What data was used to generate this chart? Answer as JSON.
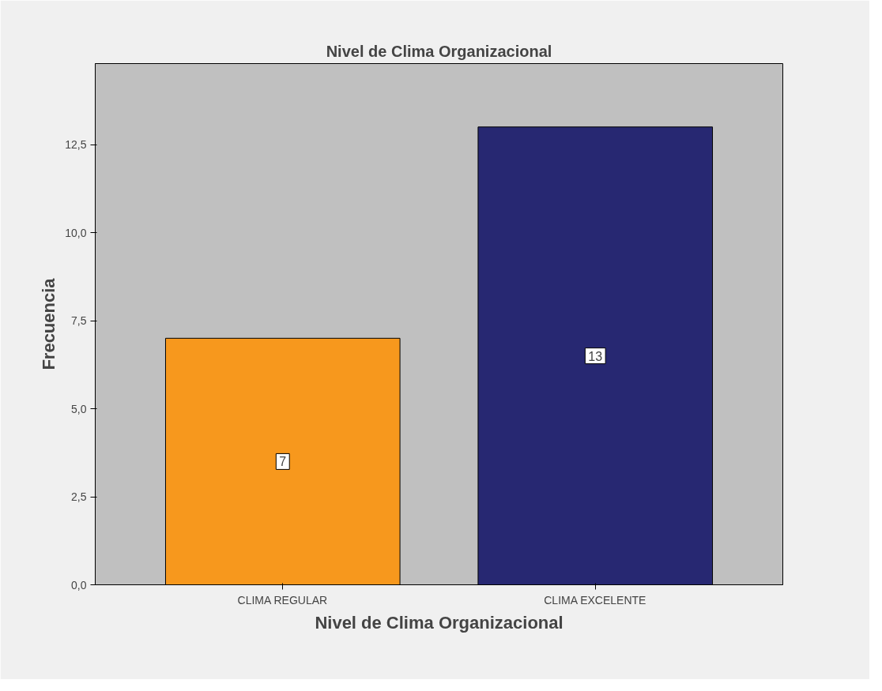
{
  "chart_data": {
    "type": "bar",
    "title": "Nivel de Clima Organizacional",
    "xlabel": "Nivel de Clima Organizacional",
    "ylabel": "Frecuencia",
    "categories": [
      "CLIMA REGULAR",
      "CLIMA EXCELENTE"
    ],
    "values": [
      7,
      13
    ],
    "colors": [
      "#f7981d",
      "#272872"
    ],
    "ylim": [
      0,
      14.8
    ],
    "yticks": [
      {
        "value": 0,
        "label": "0,0"
      },
      {
        "value": 2.5,
        "label": "2,5"
      },
      {
        "value": 5,
        "label": "5,0"
      },
      {
        "value": 7.5,
        "label": "7,5"
      },
      {
        "value": 10,
        "label": "10,0"
      },
      {
        "value": 12.5,
        "label": "12,5"
      }
    ],
    "data_labels": true,
    "grid": false
  }
}
